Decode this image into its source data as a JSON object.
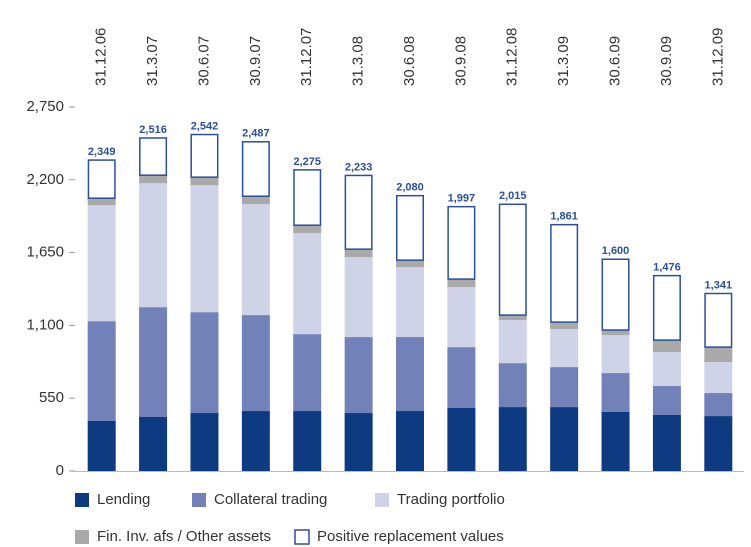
{
  "chart_data": {
    "type": "stacked_bar",
    "categories": [
      "31.12.06",
      "31.3.07",
      "30.6.07",
      "30.9.07",
      "31.12.07",
      "31.3.08",
      "30.6.08",
      "30.9.08",
      "31.12.08",
      "31.3.09",
      "30.6.09",
      "30.9.09",
      "31.12.09"
    ],
    "series": [
      {
        "name": "Lending",
        "color": "#0d3a80",
        "values": [
          378,
          408,
          438,
          453,
          453,
          438,
          453,
          476,
          483,
          483,
          446,
          423,
          415
        ]
      },
      {
        "name": "Collateral trading",
        "color": "#7282b8",
        "values": [
          754,
          830,
          762,
          725,
          581,
          574,
          559,
          460,
          332,
          302,
          294,
          219,
          174
        ]
      },
      {
        "name": "Trading portfolio",
        "color": "#cfd3e8",
        "values": [
          876,
          936,
          959,
          838,
          763,
          604,
          528,
          453,
          325,
          287,
          287,
          256,
          234
        ]
      },
      {
        "name": "Fin. Inv. afs / Other assets",
        "color": "#a9a9a9",
        "values": [
          53,
          61,
          61,
          60,
          60,
          60,
          53,
          61,
          38,
          53,
          38,
          91,
          113
        ]
      },
      {
        "name": "Positive replacement values",
        "color": "#ffffff",
        "edgecolor": "#2b4f9c",
        "values": [
          288,
          281,
          322,
          411,
          418,
          557,
          487,
          547,
          837,
          736,
          535,
          487,
          405
        ]
      }
    ],
    "totals": [
      2349,
      2516,
      2542,
      2487,
      2275,
      2233,
      2080,
      1997,
      2015,
      1861,
      1600,
      1476,
      1341
    ],
    "total_labels": [
      "2,349",
      "2,516",
      "2,542",
      "2,487",
      "2,275",
      "2,233",
      "2,080",
      "1,997",
      "2,015",
      "1,861",
      "1,600",
      "1,476",
      "1,341"
    ],
    "ylim": [
      0,
      2750
    ],
    "yticks": [
      0,
      550,
      {
        "value": 1100,
        "label": "1,100"
      },
      {
        "value": 1650,
        "label": "1,650"
      },
      {
        "value": 2200,
        "label": "2,200"
      },
      {
        "value": 2750,
        "label": "2,750"
      }
    ],
    "grid": false
  }
}
